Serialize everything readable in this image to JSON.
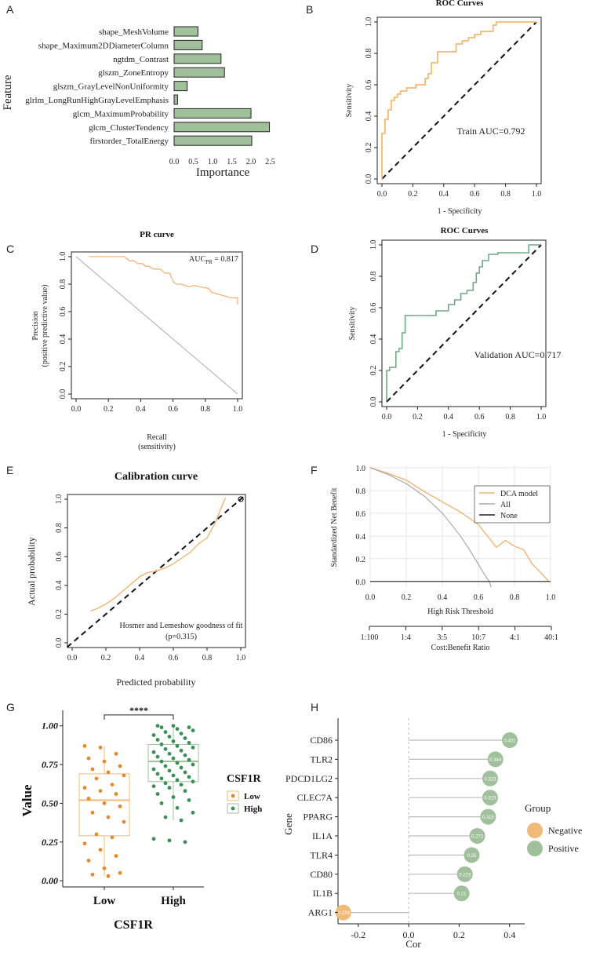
{
  "panels": {
    "A": "A",
    "B": "B",
    "C": "C",
    "D": "D",
    "E": "E",
    "F": "F",
    "G": "G",
    "H": "H"
  },
  "colors": {
    "green": "#9fc09a",
    "green_dark": "#3a8f58",
    "orange": "#f0b978",
    "orange_dark": "#e08a2c",
    "pr_line": "#f2b277",
    "gray": "#aaaaaa"
  },
  "chart_data": [
    {
      "id": "A",
      "type": "bar",
      "orientation": "horizontal",
      "categories": [
        "shape_MeshVolume",
        "shape_Maximum2DDiameterColumn",
        "ngtdm_Contrast",
        "glszm_ZoneEntropy",
        "glszm_GrayLevelNonUniformity",
        "glrlm_LongRunHighGrayLevelEmphasis",
        "glcm_MaximumProbability",
        "glcm_ClusterTendency",
        "firstorder_TotalEnergy"
      ],
      "values": [
        0.62,
        0.73,
        1.22,
        1.31,
        0.34,
        0.09,
        2.0,
        2.48,
        2.02
      ],
      "xlabel": "Importance",
      "ylabel": "Feature",
      "xticks": [
        "0.0",
        "0.5",
        "1.0",
        "1.5",
        "2.0",
        "2.5"
      ],
      "xlim": [
        0,
        2.55
      ]
    },
    {
      "id": "B",
      "type": "line",
      "title": "ROC Curves",
      "xlabel": "1 - Specificity",
      "ylabel": "Sensitivity",
      "xlim": [
        0,
        1
      ],
      "ylim": [
        0,
        1
      ],
      "ticks": [
        "0.0",
        "0.2",
        "0.4",
        "0.6",
        "0.8",
        "1.0"
      ],
      "annotation": "Train AUC=0.792",
      "x": [
        0,
        0,
        0.02,
        0.02,
        0.04,
        0.04,
        0.06,
        0.06,
        0.08,
        0.08,
        0.1,
        0.1,
        0.12,
        0.12,
        0.16,
        0.16,
        0.22,
        0.22,
        0.28,
        0.28,
        0.3,
        0.3,
        0.32,
        0.32,
        0.36,
        0.36,
        0.48,
        0.48,
        0.52,
        0.52,
        0.56,
        0.56,
        0.6,
        0.6,
        0.64,
        0.64,
        0.72,
        0.72,
        0.74,
        0.74,
        1.0
      ],
      "y": [
        0,
        0.29,
        0.29,
        0.38,
        0.38,
        0.44,
        0.44,
        0.5,
        0.5,
        0.52,
        0.52,
        0.54,
        0.54,
        0.56,
        0.56,
        0.58,
        0.58,
        0.6,
        0.6,
        0.64,
        0.64,
        0.67,
        0.67,
        0.74,
        0.74,
        0.81,
        0.81,
        0.86,
        0.86,
        0.88,
        0.88,
        0.9,
        0.9,
        0.92,
        0.92,
        0.94,
        0.94,
        0.98,
        0.98,
        1.0,
        1.0
      ]
    },
    {
      "id": "C",
      "type": "line",
      "title": "PR curve",
      "xlabel": "Recall",
      "xlabel2": "(sensitivity)",
      "ylabel": "Precision",
      "ylabel2": "(positive predictive value)",
      "xlim": [
        0,
        1
      ],
      "ylim": [
        0,
        1
      ],
      "ticks": [
        "0.0",
        "0.2",
        "0.4",
        "0.6",
        "0.8",
        "1.0"
      ],
      "annotation": "AUC",
      "annotation_sub": "PR",
      "annotation_value": " = 0.817",
      "x": [
        0.08,
        0.3,
        0.33,
        0.36,
        0.38,
        0.41,
        0.43,
        0.45,
        0.48,
        0.52,
        0.55,
        0.58,
        0.6,
        0.62,
        0.65,
        0.7,
        0.73,
        0.77,
        0.82,
        0.84,
        0.87,
        0.9,
        0.93,
        0.96,
        1.0,
        1.0
      ],
      "y": [
        1.0,
        1.0,
        0.97,
        0.97,
        0.95,
        0.95,
        0.93,
        0.93,
        0.91,
        0.91,
        0.88,
        0.88,
        0.82,
        0.8,
        0.8,
        0.78,
        0.79,
        0.78,
        0.77,
        0.74,
        0.73,
        0.72,
        0.71,
        0.7,
        0.7,
        0.65
      ]
    },
    {
      "id": "D",
      "type": "line",
      "title": "ROC Curves",
      "xlabel": "1 - Specificity",
      "ylabel": "Sensitivity",
      "xlim": [
        0,
        1
      ],
      "ylim": [
        0,
        1
      ],
      "ticks": [
        "0.0",
        "0.2",
        "0.4",
        "0.6",
        "0.8",
        "1.0"
      ],
      "annotation": "Validation AUC=0.717",
      "x": [
        0,
        0,
        0.02,
        0.02,
        0.06,
        0.06,
        0.08,
        0.08,
        0.1,
        0.1,
        0.12,
        0.12,
        0.32,
        0.32,
        0.4,
        0.4,
        0.44,
        0.44,
        0.48,
        0.48,
        0.52,
        0.52,
        0.56,
        0.56,
        0.58,
        0.58,
        0.6,
        0.6,
        0.62,
        0.62,
        0.66,
        0.66,
        0.72,
        0.72,
        0.92,
        0.92,
        1.0
      ],
      "y": [
        0,
        0.2,
        0.2,
        0.22,
        0.22,
        0.32,
        0.32,
        0.34,
        0.34,
        0.44,
        0.44,
        0.55,
        0.55,
        0.58,
        0.58,
        0.62,
        0.62,
        0.65,
        0.65,
        0.69,
        0.69,
        0.71,
        0.71,
        0.76,
        0.76,
        0.82,
        0.82,
        0.86,
        0.86,
        0.9,
        0.9,
        0.94,
        0.94,
        0.95,
        0.95,
        1.0,
        1.0
      ]
    },
    {
      "id": "E",
      "type": "line",
      "title": "Calibration curve",
      "xlabel": "Predicted probability",
      "ylabel": "Actual probability",
      "xlim": [
        0,
        1
      ],
      "ylim": [
        0,
        1
      ],
      "ticks": [
        "0.0",
        "0.2",
        "0.4",
        "0.6",
        "0.8",
        "1.0"
      ],
      "annotation": "Hosmer and Lemeshow goodness of fit",
      "annotation2": "(p=0.315)",
      "x": [
        0.11,
        0.15,
        0.2,
        0.25,
        0.3,
        0.35,
        0.4,
        0.45,
        0.5,
        0.55,
        0.6,
        0.65,
        0.7,
        0.75,
        0.8,
        0.85,
        0.88,
        0.91
      ],
      "y": [
        0.22,
        0.24,
        0.27,
        0.31,
        0.36,
        0.41,
        0.46,
        0.49,
        0.5,
        0.52,
        0.55,
        0.59,
        0.63,
        0.69,
        0.73,
        0.84,
        0.93,
        1.01
      ]
    },
    {
      "id": "F",
      "type": "line",
      "ylabel": "Standardized Net Benefit",
      "xlabel": "High Risk Threshold",
      "xlabel2": "Cost:Benefit Ratio",
      "xlim": [
        0,
        1
      ],
      "ylim": [
        -0.05,
        1.02
      ],
      "xticks": [
        "0.0",
        "0.2",
        "0.4",
        "0.6",
        "0.8",
        "1.0"
      ],
      "yticks": [
        "0.0",
        "0.2",
        "0.4",
        "0.6",
        "0.8",
        "1.0"
      ],
      "ratio_ticks": [
        "1:100",
        "1:4",
        "3:5",
        "10:7",
        "4:1",
        "40:1"
      ],
      "legend": [
        "DCA model",
        "All",
        "None"
      ],
      "series": [
        {
          "name": "DCA model",
          "x": [
            0,
            0.1,
            0.2,
            0.3,
            0.4,
            0.5,
            0.6,
            0.7,
            0.75,
            0.8,
            0.85,
            0.9,
            0.95,
            0.99
          ],
          "y": [
            1,
            0.95,
            0.89,
            0.79,
            0.7,
            0.61,
            0.5,
            0.3,
            0.36,
            0.31,
            0.28,
            0.15,
            0.07,
            0.0
          ]
        },
        {
          "name": "All",
          "x": [
            0,
            0.1,
            0.2,
            0.3,
            0.4,
            0.5,
            0.55,
            0.6,
            0.63,
            0.66,
            0.67
          ],
          "y": [
            1,
            0.94,
            0.86,
            0.75,
            0.6,
            0.4,
            0.28,
            0.15,
            0.07,
            0.0,
            -0.05
          ]
        },
        {
          "name": "None",
          "x": [
            0,
            1
          ],
          "y": [
            0,
            0
          ]
        }
      ]
    },
    {
      "id": "G",
      "type": "scatter",
      "xlabel": "CSF1R",
      "ylabel": "Value",
      "categories": [
        "Low",
        "High"
      ],
      "yticks": [
        "0.00",
        "0.25",
        "0.50",
        "0.75",
        "1.00"
      ],
      "ylim": [
        -0.04,
        1.1
      ],
      "significance": "****",
      "legend_title": "CSF1R",
      "legend": [
        "Low",
        "High"
      ],
      "box": [
        {
          "q1": 0.29,
          "median": 0.52,
          "q3": 0.69,
          "lo": 0.03,
          "hi": 0.87
        },
        {
          "q1": 0.64,
          "median": 0.77,
          "q3": 0.88,
          "lo": 0.39,
          "hi": 1.0
        }
      ],
      "points_low": [
        0.87,
        0.86,
        0.82,
        0.79,
        0.77,
        0.74,
        0.72,
        0.7,
        0.68,
        0.66,
        0.62,
        0.6,
        0.58,
        0.56,
        0.53,
        0.5,
        0.48,
        0.44,
        0.41,
        0.38,
        0.3,
        0.28,
        0.24,
        0.2,
        0.16,
        0.13,
        0.08,
        0.05,
        0.04,
        0.03
      ],
      "points_high": [
        1.0,
        1.0,
        0.99,
        0.99,
        0.98,
        0.97,
        0.96,
        0.95,
        0.94,
        0.93,
        0.92,
        0.91,
        0.9,
        0.89,
        0.88,
        0.87,
        0.86,
        0.85,
        0.84,
        0.83,
        0.82,
        0.81,
        0.8,
        0.79,
        0.78,
        0.77,
        0.76,
        0.75,
        0.74,
        0.73,
        0.72,
        0.71,
        0.7,
        0.69,
        0.68,
        0.67,
        0.66,
        0.65,
        0.64,
        0.63,
        0.62,
        0.61,
        0.6,
        0.58,
        0.56,
        0.54,
        0.52,
        0.5,
        0.47,
        0.44,
        0.41,
        0.39,
        0.27,
        0.26,
        0.25
      ]
    },
    {
      "id": "H",
      "type": "scatter",
      "subtype": "lollipop",
      "xlabel": "Cor",
      "ylabel": "Gene",
      "categories": [
        "CD86",
        "TLR2",
        "PDCD1LG2",
        "CLEC7A",
        "PPARG",
        "IL1A",
        "TLR4",
        "CD80",
        "IL1B",
        "ARG1"
      ],
      "values": [
        0.401,
        0.344,
        0.323,
        0.323,
        0.315,
        0.272,
        0.25,
        0.223,
        0.21,
        -0.259
      ],
      "labels": [
        "0.401",
        "0.344",
        "0.323",
        "0.323",
        "0.315",
        "0.272",
        "0.25",
        "0.223",
        "0.21",
        "-0.259"
      ],
      "xlim": [
        -0.28,
        0.46
      ],
      "xticks": [
        "-0.2",
        "0.0",
        "0.2",
        "0.4"
      ],
      "legend_title": "Group",
      "legend": [
        "Negative",
        "Positive"
      ]
    }
  ]
}
